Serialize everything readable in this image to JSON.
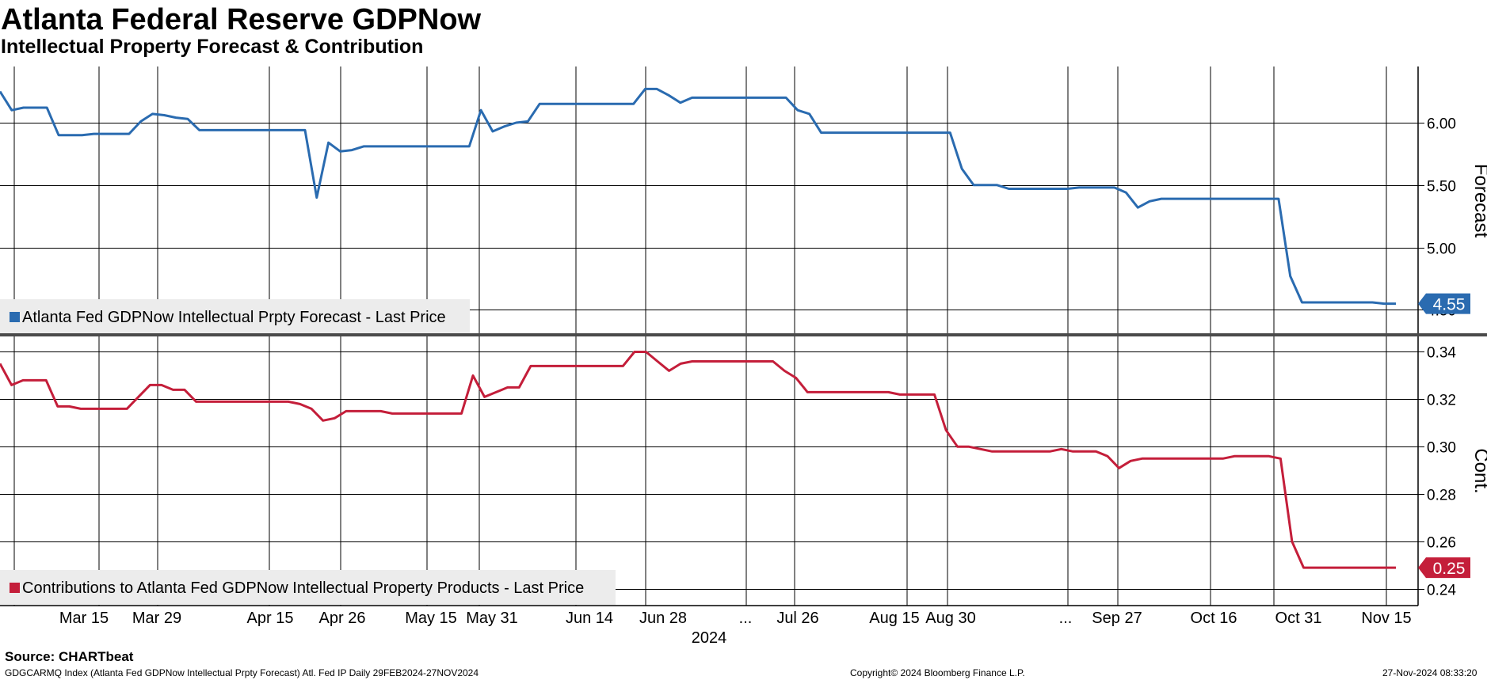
{
  "title": "Atlanta Federal Reserve GDPNow",
  "subtitle": "Intellectual Property Forecast & Contribution",
  "footer": {
    "source": "Source: CHARTbeat",
    "index_info": "GDGCARMQ Index (Atlanta Fed GDPNow Intellectual Prpty Forecast) Atl. Fed IP  Daily 29FEB2024-27NOV2024",
    "copyright": "Copyright© 2024 Bloomberg Finance L.P.",
    "timestamp": "27-Nov-2024 08:33:20"
  },
  "chart_data": [
    {
      "type": "line",
      "ylabel": "Forecast",
      "ylim": [
        4.3,
        6.45
      ],
      "yticks": [
        "6.00",
        "5.50",
        "5.00",
        "4.50"
      ],
      "grid": true,
      "legend_position": "bottom-left",
      "color": "#2a6bb0",
      "series": [
        {
          "name": "Atlanta Fed GDPNow Intellectual Prpty Forecast - Last Price",
          "last_value_label": "4.55",
          "values": [
            6.25,
            6.1,
            6.12,
            6.12,
            6.12,
            5.9,
            5.9,
            5.9,
            5.91,
            5.91,
            5.91,
            5.91,
            6.01,
            6.07,
            6.06,
            6.04,
            6.03,
            5.94,
            5.94,
            5.94,
            5.94,
            5.94,
            5.94,
            5.94,
            5.94,
            5.94,
            5.94,
            5.4,
            5.84,
            5.77,
            5.78,
            5.81,
            5.81,
            5.81,
            5.81,
            5.81,
            5.81,
            5.81,
            5.81,
            5.81,
            5.81,
            6.1,
            5.93,
            5.97,
            6.0,
            6.01,
            6.15,
            6.15,
            6.15,
            6.15,
            6.15,
            6.15,
            6.15,
            6.15,
            6.15,
            6.27,
            6.27,
            6.22,
            6.16,
            6.2,
            6.2,
            6.2,
            6.2,
            6.2,
            6.2,
            6.2,
            6.2,
            6.2,
            6.1,
            6.07,
            5.92,
            5.92,
            5.92,
            5.92,
            5.92,
            5.92,
            5.92,
            5.92,
            5.92,
            5.92,
            5.92,
            5.92,
            5.63,
            5.5,
            5.5,
            5.5,
            5.47,
            5.47,
            5.47,
            5.47,
            5.47,
            5.47,
            5.48,
            5.48,
            5.48,
            5.48,
            5.44,
            5.32,
            5.37,
            5.39,
            5.39,
            5.39,
            5.39,
            5.39,
            5.39,
            5.39,
            5.39,
            5.39,
            5.39,
            5.39,
            4.77,
            4.56,
            4.56,
            4.56,
            4.56,
            4.56,
            4.56,
            4.56,
            4.55,
            4.55
          ]
        }
      ]
    },
    {
      "type": "line",
      "xlabel": "2024",
      "ylabel": "Cont.",
      "ylim": [
        0.233,
        0.3465
      ],
      "yticks": [
        "0.34",
        "0.32",
        "0.30",
        "0.28",
        "0.26",
        "0.24"
      ],
      "grid": true,
      "legend_position": "bottom-left",
      "color": "#c41e3a",
      "x_tick_labels": [
        "Mar 15",
        "Mar 29",
        "Apr 15",
        "Apr 26",
        "May 15",
        "May 31",
        "Jun 14",
        "Jun 28",
        "...",
        "Jul 26",
        "Aug 15",
        "Aug 30",
        "...",
        "Sep 27",
        "Oct 16",
        "Oct 31",
        "Nov 15"
      ],
      "series": [
        {
          "name": "Contributions to Atlanta Fed GDPNow Intellectual Property Products - Last Price",
          "last_value_label": "0.25",
          "values": [
            0.335,
            0.326,
            0.328,
            0.328,
            0.328,
            0.317,
            0.317,
            0.316,
            0.316,
            0.316,
            0.316,
            0.316,
            0.321,
            0.326,
            0.326,
            0.324,
            0.324,
            0.319,
            0.319,
            0.319,
            0.319,
            0.319,
            0.319,
            0.319,
            0.319,
            0.319,
            0.318,
            0.316,
            0.311,
            0.312,
            0.315,
            0.315,
            0.315,
            0.315,
            0.314,
            0.314,
            0.314,
            0.314,
            0.314,
            0.314,
            0.314,
            0.33,
            0.321,
            0.323,
            0.325,
            0.325,
            0.334,
            0.334,
            0.334,
            0.334,
            0.334,
            0.334,
            0.334,
            0.334,
            0.334,
            0.34,
            0.34,
            0.336,
            0.332,
            0.335,
            0.336,
            0.336,
            0.336,
            0.336,
            0.336,
            0.336,
            0.336,
            0.336,
            0.332,
            0.329,
            0.323,
            0.323,
            0.323,
            0.323,
            0.323,
            0.323,
            0.323,
            0.323,
            0.322,
            0.322,
            0.322,
            0.322,
            0.307,
            0.3,
            0.3,
            0.299,
            0.298,
            0.298,
            0.298,
            0.298,
            0.298,
            0.298,
            0.299,
            0.298,
            0.298,
            0.298,
            0.296,
            0.291,
            0.294,
            0.295,
            0.295,
            0.295,
            0.295,
            0.295,
            0.295,
            0.295,
            0.295,
            0.296,
            0.296,
            0.296,
            0.296,
            0.295,
            0.26,
            0.249,
            0.249,
            0.249,
            0.249,
            0.249,
            0.249,
            0.249,
            0.249,
            0.249
          ]
        }
      ]
    }
  ]
}
